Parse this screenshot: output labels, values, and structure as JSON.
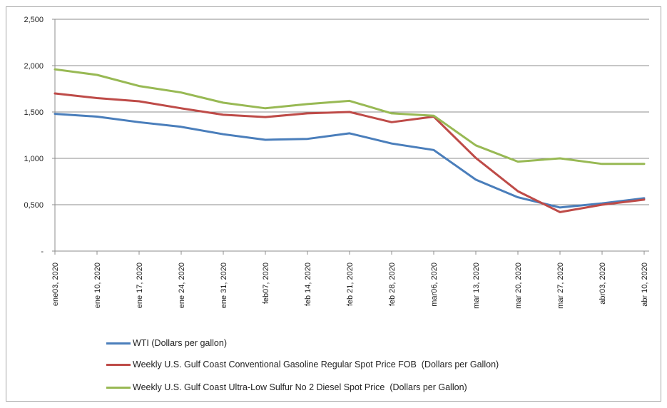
{
  "chart_data": {
    "type": "line",
    "title": "",
    "xlabel": "",
    "ylabel": "",
    "ylim": [
      0,
      2.5
    ],
    "grid": true,
    "legend_position": "bottom-left",
    "y_ticks": [
      {
        "value": 0,
        "label": "-"
      },
      {
        "value": 0.5,
        "label": "0,500"
      },
      {
        "value": 1.0,
        "label": "1,000"
      },
      {
        "value": 1.5,
        "label": "1,500"
      },
      {
        "value": 2.0,
        "label": "2,000"
      },
      {
        "value": 2.5,
        "label": "2,500"
      }
    ],
    "categories": [
      "ene03, 2020",
      "ene 10, 2020",
      "ene 17, 2020",
      "ene 24, 2020",
      "ene 31, 2020",
      "feb07, 2020",
      "feb 14, 2020",
      "feb 21, 2020",
      "feb 28, 2020",
      "mar06, 2020",
      "mar 13, 2020",
      "mar 20, 2020",
      "mar 27, 2020",
      "abr03, 2020",
      "abr 10, 2020"
    ],
    "series": [
      {
        "name": "WTI (Dollars per gallon)",
        "color": "#4a7ebb",
        "values": [
          1.48,
          1.45,
          1.39,
          1.34,
          1.26,
          1.2,
          1.21,
          1.27,
          1.16,
          1.09,
          0.77,
          0.58,
          0.47,
          0.515,
          0.57
        ]
      },
      {
        "name": "Weekly U.S. Gulf Coast Conventional Gasoline Regular Spot Price FOB  (Dollars per Gallon)",
        "color": "#be4b48",
        "values": [
          1.7,
          1.65,
          1.615,
          1.54,
          1.47,
          1.445,
          1.485,
          1.5,
          1.39,
          1.45,
          1.005,
          0.645,
          0.42,
          0.5,
          0.555
        ]
      },
      {
        "name": "Weekly U.S. Gulf Coast Ultra-Low Sulfur No 2 Diesel Spot Price  (Dollars per Gallon)",
        "color": "#98b954",
        "values": [
          1.96,
          1.9,
          1.78,
          1.71,
          1.6,
          1.54,
          1.585,
          1.62,
          1.485,
          1.46,
          1.14,
          0.965,
          1.0,
          0.94,
          0.94
        ]
      }
    ]
  }
}
